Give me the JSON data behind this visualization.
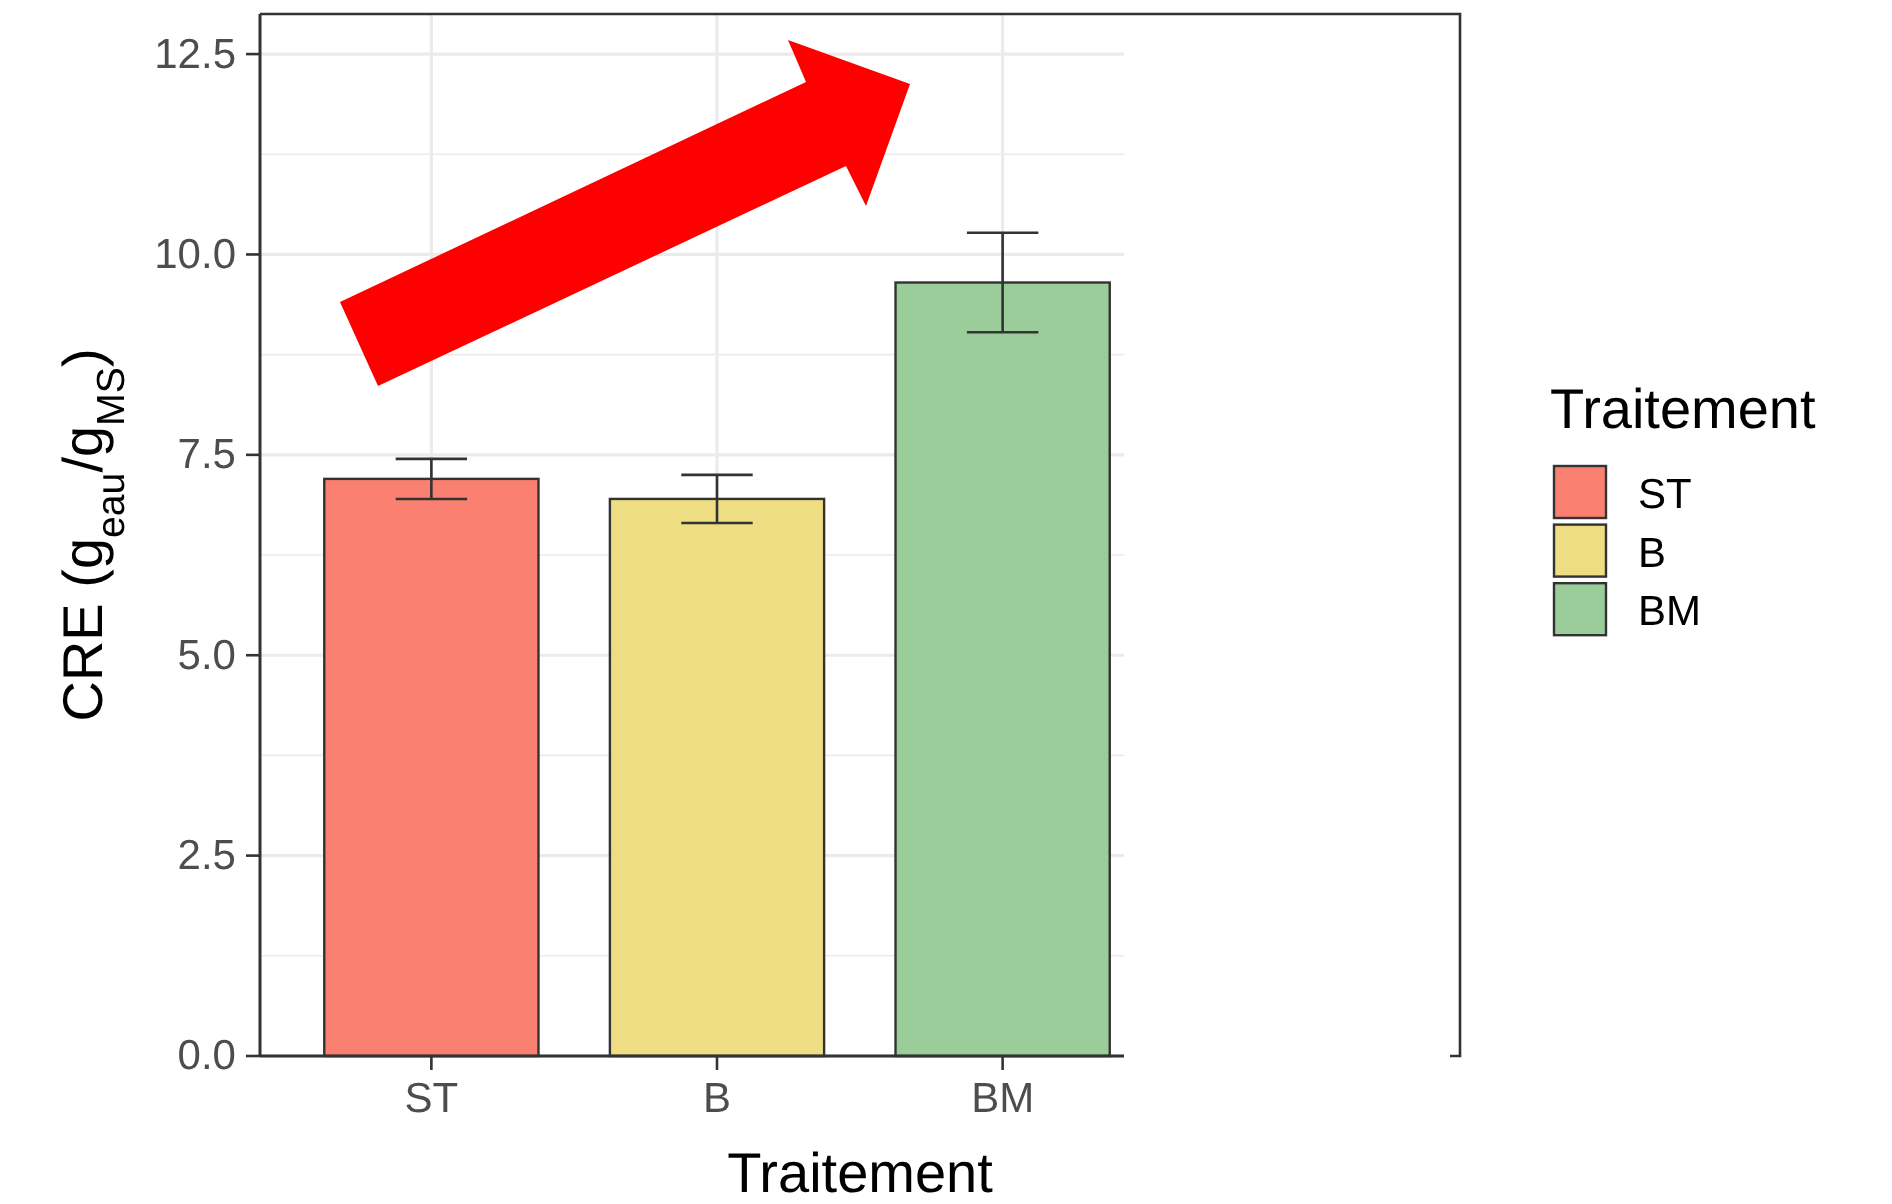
{
  "chart_data": {
    "type": "bar",
    "categories": [
      "ST",
      "B",
      "BM"
    ],
    "stacked": true,
    "series": [
      {
        "name": "ST",
        "color": "#fa8072",
        "values": [
          7.2,
          null,
          null
        ],
        "errors": [
          0.25,
          null,
          null
        ]
      },
      {
        "name": "B",
        "color": "#eedd82",
        "values": [
          null,
          6.95,
          null
        ],
        "errors": [
          null,
          0.3,
          null
        ]
      },
      {
        "name": "BM",
        "color": "#9bcd9b",
        "values": [
          null,
          null,
          9.65
        ],
        "errors": [
          null,
          null,
          0.62
        ]
      }
    ],
    "xlabel": "Traitement",
    "ylabel": "CRE (g$_{eau}$/g$_{MS}$)",
    "legend_title": "Traitement",
    "legend": "right",
    "ylim": [
      0,
      13
    ],
    "yticks": [
      {
        "value": 0,
        "label": "0.0"
      },
      2.5,
      {
        "value": 5,
        "label": "5.0"
      },
      7.5,
      {
        "value": 10,
        "label": "10.0"
      },
      12.5
    ],
    "grid": true
  }
}
